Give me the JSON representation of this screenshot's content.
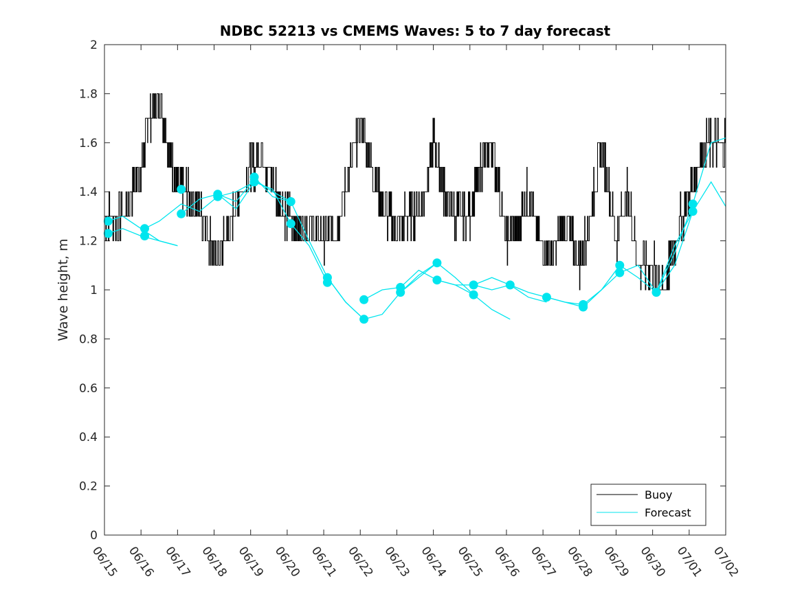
{
  "chart_data": {
    "type": "line",
    "title": "NDBC 52213 vs CMEMS Waves: 5 to 7 day forecast",
    "xlabel": "",
    "ylabel": "Wave height, m",
    "xlim": [
      "06/15",
      "07/02"
    ],
    "ylim": [
      0,
      2
    ],
    "x_ticks": [
      "06/15",
      "06/16",
      "06/17",
      "06/18",
      "06/19",
      "06/20",
      "06/21",
      "06/22",
      "06/23",
      "06/24",
      "06/25",
      "06/26",
      "06/27",
      "06/28",
      "06/29",
      "06/30",
      "07/01",
      "07/02"
    ],
    "y_ticks": [
      "0",
      "0.2",
      "0.4",
      "0.6",
      "0.8",
      "1",
      "1.2",
      "1.4",
      "1.6",
      "1.8",
      "2"
    ],
    "legend": {
      "placement": "bottom-right",
      "entries": [
        "Buoy",
        "Forecast"
      ]
    },
    "colors": {
      "buoy": "#000000",
      "forecast": "#00e5ee"
    },
    "buoy": {
      "name": "Buoy",
      "x_days_from_0615": [
        0,
        0.5,
        1,
        1.2,
        1.5,
        1.8,
        2,
        2.3,
        2.7,
        3,
        3.3,
        3.6,
        4,
        4.3,
        4.7,
        5,
        5.3,
        5.6,
        6,
        6.3,
        6.6,
        7,
        7.3,
        7.6,
        8,
        8.3,
        8.7,
        9,
        9.3,
        9.6,
        10,
        10.3,
        10.6,
        11,
        11.3,
        11.6,
        12,
        12.3,
        12.6,
        13,
        13.3,
        13.6,
        14,
        14.3,
        14.6,
        15,
        15.3,
        15.6,
        16,
        16.3,
        16.6,
        17
      ],
      "y": [
        1.3,
        1.3,
        1.5,
        1.7,
        1.8,
        1.55,
        1.4,
        1.4,
        1.3,
        1.15,
        1.2,
        1.35,
        1.5,
        1.55,
        1.4,
        1.3,
        1.25,
        1.25,
        1.2,
        1.25,
        1.4,
        1.7,
        1.5,
        1.35,
        1.25,
        1.3,
        1.35,
        1.6,
        1.4,
        1.3,
        1.3,
        1.5,
        1.6,
        1.2,
        1.25,
        1.4,
        1.15,
        1.15,
        1.3,
        1.1,
        1.3,
        1.6,
        1.2,
        1.4,
        1.1,
        1.1,
        1.0,
        1.2,
        1.4,
        1.55,
        1.6,
        1.6
      ]
    },
    "forecast": {
      "name": "Forecast",
      "series": [
        {
          "x": [
            0.1,
            0.5,
            1,
            1.5,
            2
          ],
          "y": [
            1.28,
            1.3,
            1.25,
            1.2,
            1.18
          ]
        },
        {
          "x": [
            0.1,
            0.5,
            1,
            1.5,
            2
          ],
          "y": [
            1.23,
            1.25,
            1.22,
            1.2,
            1.18
          ]
        },
        {
          "x": [
            1.1,
            1.5,
            2.1,
            2.6,
            3.1,
            3.6,
            4.1
          ],
          "y": [
            1.25,
            1.28,
            1.35,
            1.32,
            1.38,
            1.4,
            1.44
          ]
        },
        {
          "x": [
            2.1,
            2.6,
            3.1,
            3.6,
            4.1,
            4.6,
            5.1
          ],
          "y": [
            1.31,
            1.37,
            1.39,
            1.36,
            1.45,
            1.4,
            1.36
          ]
        },
        {
          "x": [
            3.1,
            3.6,
            4.1,
            4.6,
            5.1,
            5.6,
            6.1
          ],
          "y": [
            1.39,
            1.33,
            1.44,
            1.41,
            1.27,
            1.18,
            1.03
          ]
        },
        {
          "x": [
            4.1,
            4.6,
            5.1,
            5.6,
            6.1,
            6.6,
            7.1
          ],
          "y": [
            1.46,
            1.38,
            1.36,
            1.2,
            1.05,
            0.95,
            0.88
          ]
        },
        {
          "x": [
            6.1,
            6.6,
            7.1,
            7.6,
            8.1,
            8.6,
            9.1
          ],
          "y": [
            1.05,
            0.95,
            0.88,
            0.9,
            0.99,
            1.05,
            1.11
          ]
        },
        {
          "x": [
            7.1,
            7.6,
            8.1,
            8.6,
            9.1,
            9.6,
            10.1
          ],
          "y": [
            0.96,
            1.0,
            1.01,
            1.08,
            1.04,
            1.02,
            0.98
          ]
        },
        {
          "x": [
            8.1,
            8.6,
            9.1,
            9.6,
            10.1,
            10.6,
            11.1
          ],
          "y": [
            0.99,
            1.06,
            1.11,
            1.05,
            0.98,
            0.92,
            0.88
          ]
        },
        {
          "x": [
            9.1,
            9.6,
            10.1,
            10.6,
            11.1,
            11.6,
            12.1
          ],
          "y": [
            1.04,
            1.02,
            1.02,
            1.05,
            1.02,
            0.97,
            0.95
          ]
        },
        {
          "x": [
            10.1,
            10.6,
            11.1,
            11.6,
            12.1,
            12.6,
            13.1
          ],
          "y": [
            1.02,
            1.0,
            1.02,
            0.99,
            0.97,
            0.95,
            0.94
          ]
        },
        {
          "x": [
            12.1,
            12.6,
            13.1,
            13.6,
            14.1,
            14.6,
            15.1
          ],
          "y": [
            0.97,
            0.95,
            0.93,
            1.0,
            1.07,
            1.1,
            0.99
          ]
        },
        {
          "x": [
            13.1,
            13.6,
            14.1,
            14.6,
            15.1,
            15.6,
            16.1
          ],
          "y": [
            0.94,
            1.0,
            1.1,
            1.05,
            0.99,
            1.1,
            1.32
          ]
        },
        {
          "x": [
            15.1,
            15.6,
            16.1,
            16.6,
            17
          ],
          "y": [
            0.99,
            1.15,
            1.35,
            1.6,
            1.62
          ]
        },
        {
          "x": [
            15.1,
            15.6,
            16.1,
            16.6,
            17
          ],
          "y": [
            0.99,
            1.18,
            1.32,
            1.44,
            1.34
          ]
        }
      ],
      "markers_x": [
        0.1,
        0.1,
        1.1,
        1.1,
        2.1,
        2.1,
        3.1,
        3.1,
        4.1,
        4.1,
        5.1,
        5.1,
        6.1,
        6.1,
        7.1,
        7.1,
        8.1,
        8.1,
        9.1,
        9.1,
        10.1,
        10.1,
        11.1,
        12.1,
        13.1,
        13.1,
        14.1,
        14.1,
        15.1,
        16.1,
        16.1
      ],
      "markers_y": [
        1.28,
        1.23,
        1.25,
        1.22,
        1.41,
        1.31,
        1.39,
        1.38,
        1.46,
        1.44,
        1.36,
        1.27,
        1.05,
        1.03,
        0.96,
        0.88,
        1.01,
        0.99,
        1.11,
        1.04,
        1.02,
        0.98,
        1.02,
        0.97,
        0.94,
        0.93,
        1.1,
        1.07,
        0.99,
        1.35,
        1.32
      ]
    }
  }
}
